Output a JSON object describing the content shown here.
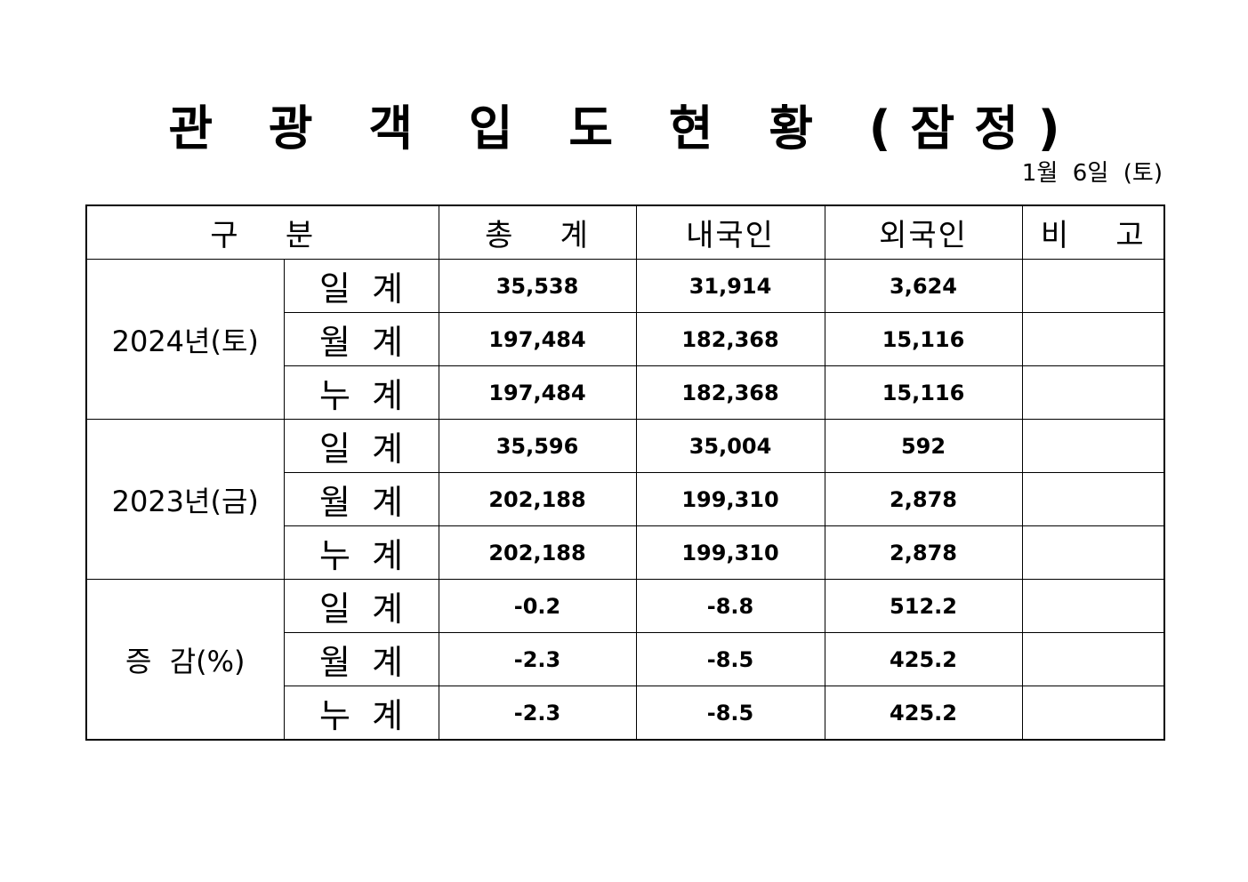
{
  "document": {
    "title": "관 광 객 입 도 현 황 (잠정)",
    "date": "1월  6일  (토)"
  },
  "table": {
    "headers": [
      "구    분",
      "총    계",
      "내국인",
      "외국인",
      "비    고"
    ],
    "groups": [
      {
        "label": "2024년(토)",
        "rows": [
          {
            "sub": "일  계",
            "total": "35,538",
            "domestic": "31,914",
            "foreign": "3,624",
            "note": ""
          },
          {
            "sub": "월  계",
            "total": "197,484",
            "domestic": "182,368",
            "foreign": "15,116",
            "note": ""
          },
          {
            "sub": "누  계",
            "total": "197,484",
            "domestic": "182,368",
            "foreign": "15,116",
            "note": ""
          }
        ]
      },
      {
        "label": "2023년(금)",
        "rows": [
          {
            "sub": "일  계",
            "total": "35,596",
            "domestic": "35,004",
            "foreign": "592",
            "note": ""
          },
          {
            "sub": "월  계",
            "total": "202,188",
            "domestic": "199,310",
            "foreign": "2,878",
            "note": ""
          },
          {
            "sub": "누  계",
            "total": "202,188",
            "domestic": "199,310",
            "foreign": "2,878",
            "note": ""
          }
        ]
      },
      {
        "label": "증  감(%)",
        "rows": [
          {
            "sub": "일  계",
            "total": "-0.2",
            "domestic": "-8.8",
            "foreign": "512.2",
            "note": ""
          },
          {
            "sub": "월  계",
            "total": "-2.3",
            "domestic": "-8.5",
            "foreign": "425.2",
            "note": ""
          },
          {
            "sub": "누  계",
            "total": "-2.3",
            "domestic": "-8.5",
            "foreign": "425.2",
            "note": ""
          }
        ]
      }
    ]
  }
}
